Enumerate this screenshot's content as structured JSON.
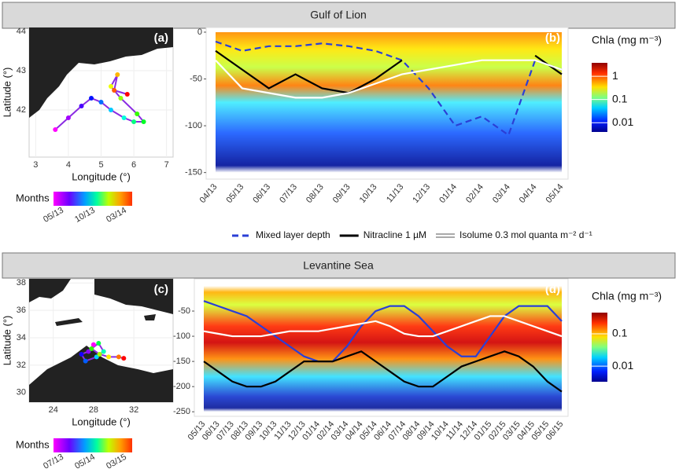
{
  "panels": [
    {
      "title": "Gulf of Lion"
    },
    {
      "title": "Levantine Sea"
    }
  ],
  "chart_data": [
    {
      "type": "map",
      "label": "(a)",
      "xlabel": "Longitude (°)",
      "ylabel": "Latitude (°)",
      "xlim": [
        2.8,
        7.2
      ],
      "xticks": [
        3,
        4,
        5,
        6,
        7
      ],
      "ylim": [
        40.8,
        44.1
      ],
      "yticks": [
        42,
        43,
        44
      ],
      "track": {
        "x": [
          3.6,
          4.0,
          4.4,
          4.7,
          5.0,
          5.3,
          5.7,
          6.0,
          6.3,
          6.1,
          5.6,
          5.3,
          5.5,
          5.4,
          5.8
        ],
        "y": [
          41.5,
          41.8,
          42.1,
          42.3,
          42.2,
          42.0,
          41.8,
          41.7,
          41.7,
          41.9,
          42.3,
          42.6,
          42.9,
          42.5,
          42.4
        ]
      },
      "months": {
        "title": "Months",
        "labels": [
          "05/13",
          "10/13",
          "03/14"
        ]
      }
    },
    {
      "type": "line",
      "label": "(b)",
      "ylim": [
        -157,
        5
      ],
      "yticks": [
        0,
        -50,
        -100,
        -150
      ],
      "legend": "bottom",
      "categories": [
        "04/13",
        "05/13",
        "06/13",
        "07/13",
        "08/13",
        "09/13",
        "10/13",
        "11/13",
        "12/13",
        "01/14",
        "02/14",
        "03/14",
        "04/14",
        "05/14"
      ],
      "series": [
        {
          "name": "Mixed layer depth",
          "color": "#2b3fd6",
          "style": "dashed",
          "values": [
            -10,
            -20,
            -15,
            -15,
            -12,
            -15,
            -20,
            -30,
            -60,
            -100,
            -90,
            -110,
            -30,
            -40
          ]
        },
        {
          "name": "Nitracline 1 µM",
          "color": "#000000",
          "style": "solid",
          "values": [
            -20,
            -40,
            -60,
            -45,
            -60,
            -65,
            -50,
            -30,
            null,
            null,
            null,
            null,
            -25,
            -45
          ]
        },
        {
          "name": "Isolume 0.3 mol quanta m⁻² d⁻¹",
          "color": "#ffffff",
          "style": "outline",
          "values": [
            -30,
            -60,
            -65,
            -70,
            -70,
            -65,
            -55,
            -45,
            -40,
            -35,
            -30,
            -30,
            -30,
            -40
          ]
        }
      ],
      "colorbar": {
        "title": "Chla (mg m⁻³)",
        "log": true,
        "lim": [
          0.004,
          3.8
        ],
        "ticks": [
          1,
          0.1,
          0.01
        ]
      }
    },
    {
      "type": "map",
      "label": "(c)",
      "xlabel": "Longitude (°)",
      "ylabel": "Latitude (°)",
      "xlim": [
        21.6,
        35.9
      ],
      "xticks": [
        24,
        28,
        32
      ],
      "ylim": [
        29.3,
        38.3
      ],
      "yticks": [
        30,
        32,
        34,
        36,
        38
      ],
      "track": {
        "x": [
          28,
          27.5,
          26.8,
          27.2,
          28.3,
          29,
          28.5,
          27.8,
          28.6,
          29.5,
          30.5,
          31
        ],
        "y": [
          33.5,
          33.0,
          32.8,
          32.3,
          32.6,
          33.0,
          33.6,
          33.2,
          32.8,
          32.6,
          32.6,
          32.5
        ]
      },
      "months": {
        "title": "Months",
        "labels": [
          "07/13",
          "05/14",
          "03/15"
        ]
      }
    },
    {
      "type": "line",
      "label": "(d)",
      "ylim": [
        -259,
        14
      ],
      "yticks": [
        -50,
        -100,
        -150,
        -200,
        -250
      ],
      "categories": [
        "05/13",
        "06/13",
        "07/13",
        "08/13",
        "09/13",
        "10/13",
        "11/13",
        "12/13",
        "01/14",
        "02/14",
        "03/14",
        "04/14",
        "05/14",
        "06/14",
        "07/14",
        "08/14",
        "09/14",
        "10/14",
        "11/14",
        "12/14",
        "01/15",
        "02/15",
        "03/15",
        "04/15",
        "05/15",
        "06/15"
      ],
      "series": [
        {
          "color": "#2b3fd6",
          "style": "solid",
          "values": [
            -30,
            -40,
            -50,
            -60,
            -80,
            -100,
            -120,
            -140,
            -150,
            -150,
            -120,
            -80,
            -50,
            -40,
            -40,
            -60,
            -90,
            -120,
            -140,
            -140,
            -100,
            -60,
            -40,
            -40,
            -40,
            -70
          ]
        },
        {
          "color": "#000000",
          "style": "solid",
          "values": [
            -150,
            -170,
            -190,
            -200,
            -200,
            -190,
            -170,
            -150,
            -150,
            -150,
            -140,
            -130,
            -150,
            -170,
            -190,
            -200,
            -200,
            -180,
            -160,
            -150,
            -140,
            -130,
            -140,
            -160,
            -190,
            -210
          ]
        },
        {
          "color": "#ffffff",
          "style": "solid",
          "values": [
            -90,
            -95,
            -100,
            -100,
            -100,
            -95,
            -90,
            -90,
            -90,
            -85,
            -80,
            -75,
            -70,
            -80,
            -95,
            -100,
            -100,
            -90,
            -80,
            -70,
            -60,
            -60,
            -70,
            -80,
            -90,
            -100
          ]
        }
      ],
      "colorbar": {
        "title": "Chla (mg m⁻³)",
        "log": true,
        "lim": [
          0.0033,
          0.454
        ],
        "ticks": [
          0.1,
          0.01
        ]
      }
    }
  ]
}
